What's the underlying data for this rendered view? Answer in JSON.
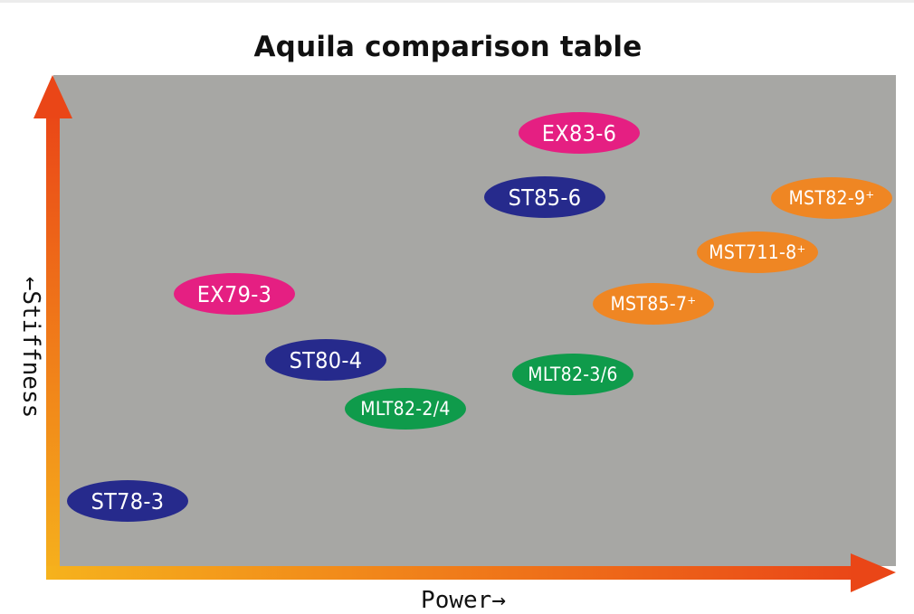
{
  "title": "Aquila comparison table",
  "axes": {
    "y_label": "←Stiffness",
    "x_label": "Power→"
  },
  "colors": {
    "plot_background": "#a7a7a4",
    "arrow_start": "#f6b21c",
    "arrow_end": "#ea4617",
    "navy": "#262a8c",
    "magenta": "#e51f82",
    "green": "#0f9b4b",
    "orange": "#ef8623"
  },
  "models": [
    {
      "label": "EX83-6",
      "color": "#e51f82"
    },
    {
      "label": "ST85-6",
      "color": "#262a8c"
    },
    {
      "label": "MST82-9⁺",
      "color": "#ef8623"
    },
    {
      "label": "MST711-8⁺",
      "color": "#ef8623"
    },
    {
      "label": "MST85-7⁺",
      "color": "#ef8623"
    },
    {
      "label": "EX79-3",
      "color": "#e51f82"
    },
    {
      "label": "ST80-4",
      "color": "#262a8c"
    },
    {
      "label": "MLT82-3/6",
      "color": "#0f9b4b"
    },
    {
      "label": "MLT82-2/4",
      "color": "#0f9b4b"
    },
    {
      "label": "ST78-3",
      "color": "#262a8c"
    }
  ]
}
